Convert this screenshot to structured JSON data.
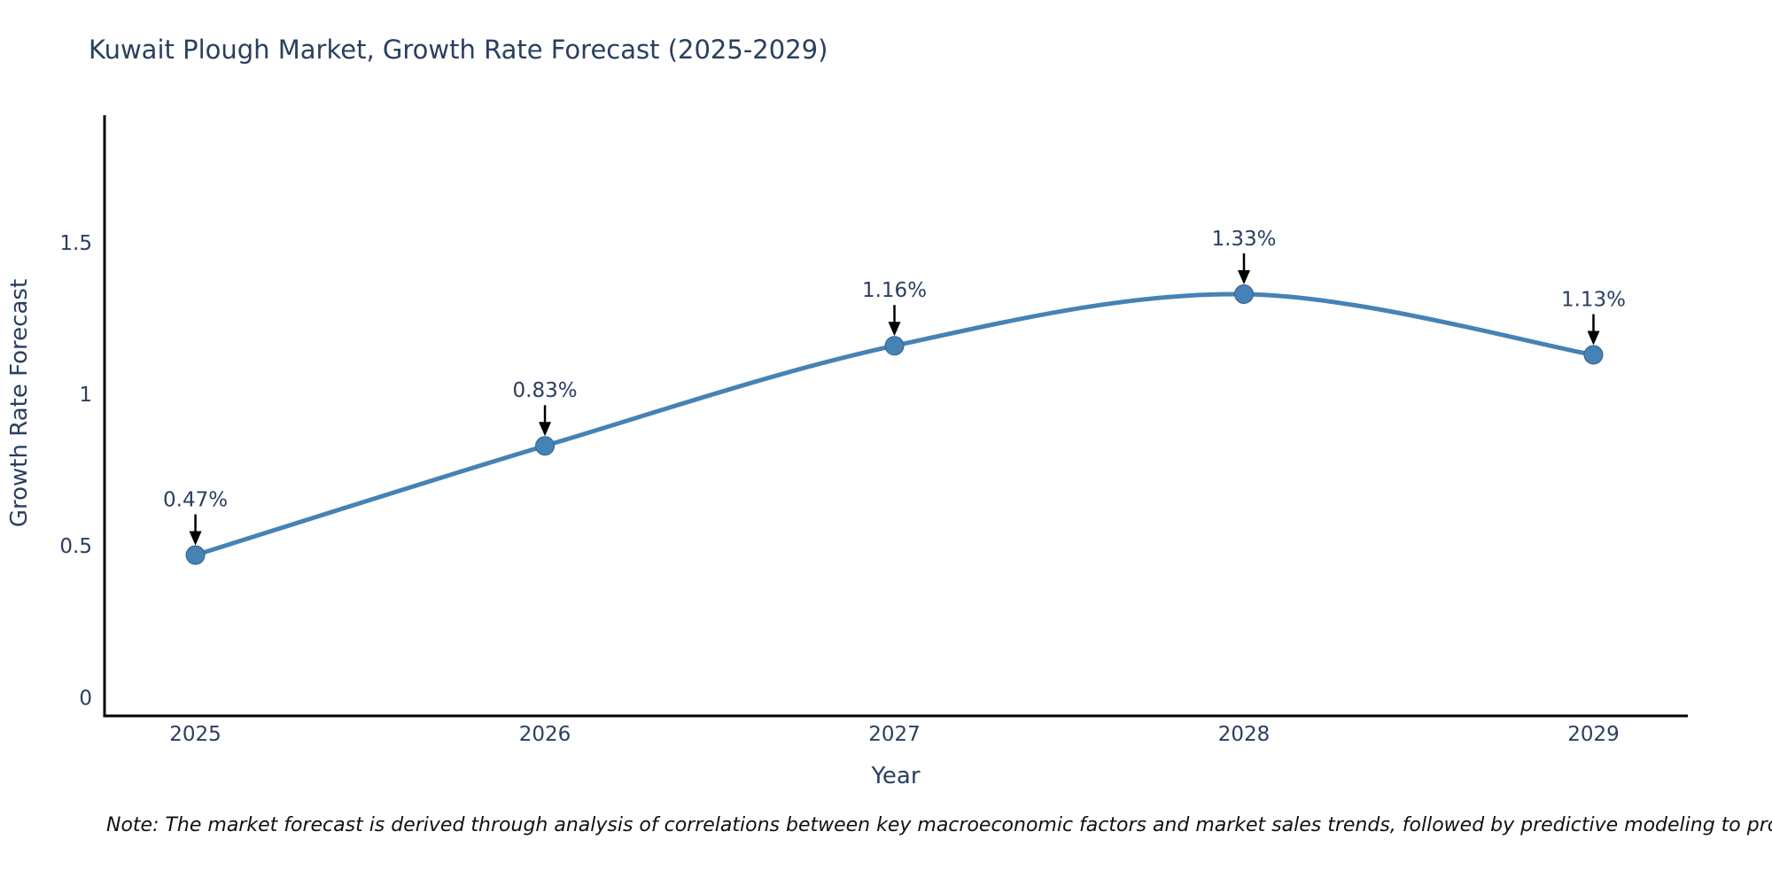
{
  "chart_data": {
    "type": "line",
    "title": "Kuwait Plough Market, Growth Rate Forecast (2025-2029)",
    "xlabel": "Year",
    "ylabel": "Growth Rate Forecast",
    "x": [
      2025,
      2026,
      2027,
      2028,
      2029
    ],
    "series": [
      {
        "name": "Growth Rate Forecast",
        "values": [
          0.47,
          0.83,
          1.16,
          1.33,
          1.13
        ],
        "point_labels": [
          "0.47%",
          "0.83%",
          "1.16%",
          "1.33%",
          "1.13%"
        ]
      }
    ],
    "x_tick_labels": [
      "2025",
      "2026",
      "2027",
      "2028",
      "2029"
    ],
    "y_ticks": [
      0,
      0.5,
      1,
      1.5
    ],
    "y_tick_labels": [
      "0",
      "0.5",
      "1",
      "1.5"
    ],
    "xlim": [
      2024.74,
      2029.27
    ],
    "ylim": [
      -0.06,
      1.92
    ],
    "grid": false,
    "legend_position": "none",
    "line_shape": "spline",
    "colors": {
      "line": "#4682b4",
      "marker_fill": "#4682b4",
      "marker_edge": "#33618c",
      "axis_line": "#000000",
      "text": "#2a3f5f",
      "annotation_arrow": "#000000",
      "note_text": "#111111",
      "background": "#ffffff"
    },
    "note": "Note: The market forecast is derived through analysis of correlations between key macroeconomic factors and market sales trends, followed by predictive modeling to project future sales"
  }
}
